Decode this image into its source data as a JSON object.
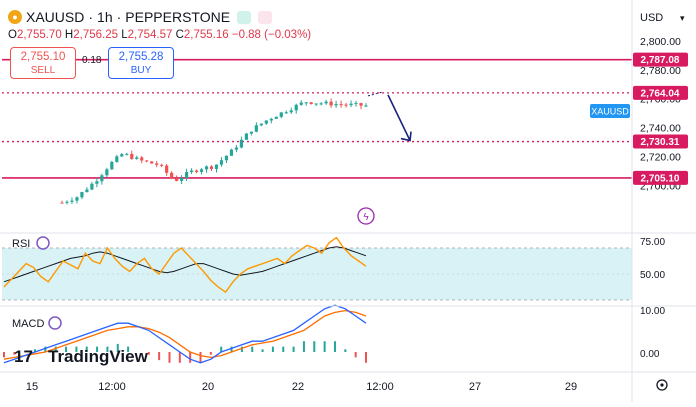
{
  "header": {
    "symbol": "XAUUSD",
    "timeframe": "1h",
    "broker": "PEPPERSTONE",
    "separator": "·",
    "o_label": "O",
    "o_value": "2,755.70",
    "h_label": "H",
    "h_value": "2,756.25",
    "l_label": "L",
    "l_value": "2,754.57",
    "c_label": "C",
    "c_value": "2,755.16",
    "change": "−0.88 (−0.03%)"
  },
  "trade": {
    "sell_price": "2,755.10",
    "sell_label": "SELL",
    "spread": "0.18",
    "buy_price": "2,755.28",
    "buy_label": "BUY"
  },
  "currency": "USD",
  "price_scale": {
    "ticks": [
      "2,800.00",
      "2,780.00",
      "2,760.00",
      "2,740.00",
      "2,720.00",
      "2,700.00"
    ],
    "symbol_badge": "XAUUSD"
  },
  "levels": [
    {
      "label": "2,787.08",
      "value": 2787.08,
      "style": "solid"
    },
    {
      "label": "2,764.04",
      "value": 2764.04,
      "style": "dotted"
    },
    {
      "label": "2,730.31",
      "value": 2730.31,
      "style": "dotted"
    },
    {
      "label": "2,705.10",
      "value": 2705.1,
      "style": "solid"
    }
  ],
  "colors": {
    "up": "#26a69a",
    "down": "#ef5350",
    "level": "#d81b60",
    "arrow": "#1a237e",
    "rsi": "#ff9800",
    "rsi_ma": "#131722",
    "rsi_band": "#d4f1f4",
    "macd": "#2962ff",
    "signal": "#ff6d00",
    "badge": "#2196f3"
  },
  "rsi": {
    "label": "RSI",
    "ticks": [
      "75.00",
      "50.00"
    ],
    "upper": 70,
    "lower": 30,
    "mid": 50
  },
  "macd": {
    "label": "MACD",
    "ticks": [
      "10.00",
      "0.00"
    ]
  },
  "time_axis": [
    "15",
    "12:00",
    "20",
    "22",
    "12:00",
    "27",
    "29"
  ],
  "watermark": "TradingView",
  "chart_data": {
    "type": "candlestick",
    "symbol": "XAUUSD",
    "timeframe": "1h",
    "ylim": [
      2685,
      2808
    ],
    "price_path": [
      {
        "t": 0,
        "price": 2688
      },
      {
        "t": 0.05,
        "price": 2692
      },
      {
        "t": 0.11,
        "price": 2703
      },
      {
        "t": 0.16,
        "price": 2715
      },
      {
        "t": 0.2,
        "price": 2722
      },
      {
        "t": 0.26,
        "price": 2717
      },
      {
        "t": 0.32,
        "price": 2714
      },
      {
        "t": 0.37,
        "price": 2703
      },
      {
        "t": 0.42,
        "price": 2709
      },
      {
        "t": 0.46,
        "price": 2712
      },
      {
        "t": 0.5,
        "price": 2713
      },
      {
        "t": 0.56,
        "price": 2724
      },
      {
        "t": 0.62,
        "price": 2738
      },
      {
        "t": 0.68,
        "price": 2746
      },
      {
        "t": 0.74,
        "price": 2752
      },
      {
        "t": 0.8,
        "price": 2758
      },
      {
        "t": 0.85,
        "price": 2757
      },
      {
        "t": 0.92,
        "price": 2756
      },
      {
        "t": 1.0,
        "price": 2755.16
      }
    ],
    "forecast_arrow": {
      "from": 2764.04,
      "to": 2730.31,
      "direction": "down"
    },
    "rsi_path": [
      40,
      46,
      52,
      58,
      55,
      48,
      44,
      52,
      60,
      57,
      54,
      66,
      60,
      58,
      70,
      62,
      56,
      52,
      58,
      62,
      54,
      50,
      58,
      66,
      70,
      64,
      58,
      52,
      45,
      40,
      36,
      44,
      50,
      54,
      56,
      58,
      60,
      62,
      58,
      64,
      68,
      72,
      70,
      66,
      74,
      78,
      70,
      64,
      60,
      56
    ],
    "rsi_ma_path": [
      44,
      46,
      48,
      50,
      52,
      54,
      56,
      58,
      60,
      62,
      63,
      64,
      66,
      67,
      66,
      64,
      62,
      60,
      58,
      56,
      54,
      52,
      51,
      52,
      54,
      56,
      58,
      58,
      56,
      54,
      52,
      50,
      49,
      50,
      51,
      52,
      54,
      56,
      58,
      60,
      62,
      64,
      66,
      68,
      70,
      71,
      70,
      68,
      66,
      64
    ],
    "macd_path": [
      -3,
      -2,
      -1,
      0,
      1,
      2,
      3,
      4,
      5,
      6,
      7,
      8,
      8,
      7,
      6,
      4,
      2,
      0,
      -2,
      -3,
      -2,
      0,
      1,
      2,
      3,
      3,
      4,
      5,
      6,
      8,
      10,
      12,
      13,
      12,
      10,
      8
    ],
    "signal_path": [
      -2,
      -1.5,
      -1,
      -0.5,
      0,
      1,
      2,
      3,
      4,
      5,
      6,
      6.5,
      7,
      7,
      6.5,
      5.5,
      4,
      2,
      0,
      -1,
      -1.5,
      -1,
      0,
      1,
      2,
      2.5,
      3,
      4,
      5,
      6,
      8,
      10,
      11,
      11.5,
      11,
      10
    ]
  }
}
